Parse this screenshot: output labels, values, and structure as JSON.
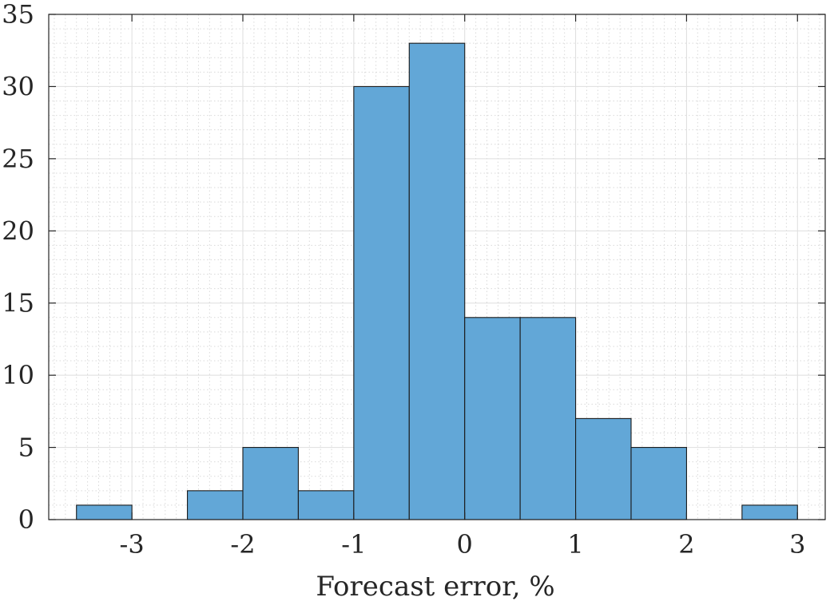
{
  "chart_data": {
    "type": "bar",
    "title": "",
    "xlabel": "Forecast error, %",
    "ylabel": "",
    "bin_edges": [
      -3.5,
      -3.0,
      -2.5,
      -2.0,
      -1.5,
      -1.0,
      -0.5,
      0.0,
      0.5,
      1.0,
      1.5,
      2.0,
      2.5,
      3.0
    ],
    "values": [
      1,
      0,
      2,
      5,
      2,
      30,
      33,
      14,
      14,
      7,
      5,
      0,
      1
    ],
    "xlim": [
      -3.75,
      3.25
    ],
    "ylim": [
      0,
      35
    ],
    "xticks": [
      -3,
      -2,
      -1,
      0,
      1,
      2,
      3
    ],
    "xtick_labels": [
      "-3",
      "-2",
      "-1",
      "0",
      "1",
      "2",
      "3"
    ],
    "yticks": [
      0,
      5,
      10,
      15,
      20,
      25,
      30,
      35
    ],
    "ytick_labels": [
      "0",
      "5",
      "10",
      "15",
      "20",
      "25",
      "30",
      "35"
    ],
    "grid": true,
    "minor_grid": true,
    "bar_color": "#62a7d7",
    "bar_edge_color": "#1a1a1a"
  }
}
